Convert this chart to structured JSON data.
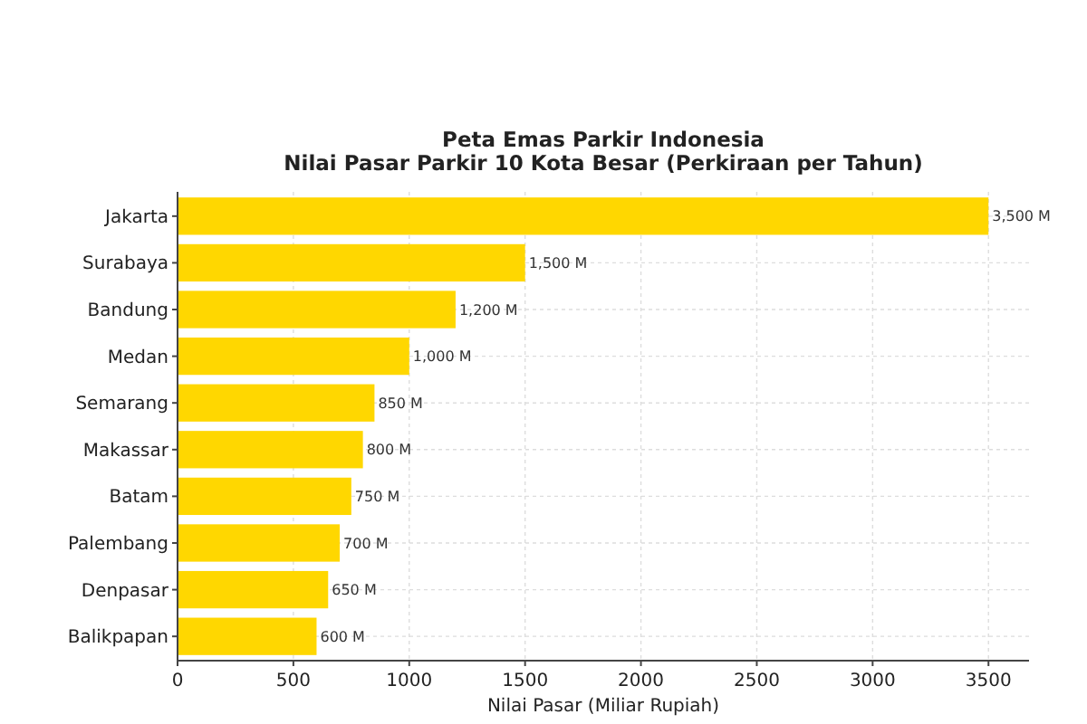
{
  "chart_data": {
    "type": "bar",
    "orientation": "horizontal",
    "title": "Peta Emas Parkir Indonesia",
    "subtitle": "Nilai Pasar Parkir 10 Kota Besar (Perkiraan per Tahun)",
    "xlabel": "Nilai Pasar (Miliar Rupiah)",
    "categories": [
      "Jakarta",
      "Surabaya",
      "Bandung",
      "Medan",
      "Semarang",
      "Makassar",
      "Batam",
      "Palembang",
      "Denpasar",
      "Balikpapan"
    ],
    "values": [
      3500,
      1500,
      1200,
      1000,
      850,
      800,
      750,
      700,
      650,
      600
    ],
    "value_labels": [
      "3,500 M",
      "1,500 M",
      "1,200 M",
      "1,000 M",
      "850 M",
      "800 M",
      "750 M",
      "700 M",
      "650 M",
      "600 M"
    ],
    "color": "#ffd700",
    "xlim": [
      0,
      3675
    ],
    "xticks": [
      0,
      500,
      1000,
      1500,
      2000,
      2500,
      3000,
      3500
    ],
    "grid": true
  }
}
